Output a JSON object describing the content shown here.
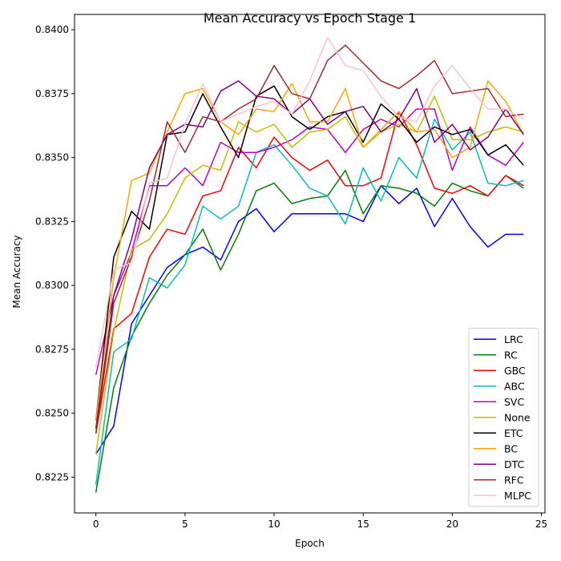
{
  "chart_data": {
    "type": "line",
    "title": "Mean Accuracy vs Epoch Stage 1",
    "xlabel": "Epoch",
    "ylabel": "Mean Accuracy",
    "xlim": [
      -1.2,
      25.2
    ],
    "ylim": [
      0.8211,
      0.8406
    ],
    "xticks": [
      0,
      5,
      10,
      15,
      20,
      25
    ],
    "yticks": [
      0.8225,
      0.825,
      0.8275,
      0.83,
      0.8325,
      0.835,
      0.8375,
      0.84
    ],
    "ytick_labels": [
      "0.8225",
      "0.8250",
      "0.8275",
      "0.8300",
      "0.8325",
      "0.8350",
      "0.8375",
      "0.8400"
    ],
    "grid": false,
    "legend_position": "lower-right",
    "x": [
      0,
      1,
      2,
      3,
      4,
      5,
      6,
      7,
      8,
      9,
      10,
      11,
      12,
      13,
      14,
      15,
      16,
      17,
      18,
      19,
      20,
      21,
      22,
      23,
      24
    ],
    "series": [
      {
        "name": "LRC",
        "color": "#0000ff",
        "values": [
          0.8234,
          0.8245,
          0.8285,
          0.8296,
          0.8307,
          0.8312,
          0.8315,
          0.831,
          0.8325,
          0.833,
          0.8321,
          0.8328,
          0.8328,
          0.8328,
          0.8328,
          0.8325,
          0.8339,
          0.8332,
          0.8338,
          0.8323,
          0.8334,
          0.8323,
          0.8315,
          0.832,
          0.832
        ]
      },
      {
        "name": "RC",
        "color": "#008000",
        "values": [
          0.8219,
          0.826,
          0.828,
          0.8293,
          0.8304,
          0.8312,
          0.8322,
          0.8306,
          0.832,
          0.8337,
          0.834,
          0.8332,
          0.8334,
          0.8335,
          0.8345,
          0.8328,
          0.8339,
          0.8338,
          0.8336,
          0.8331,
          0.834,
          0.8337,
          0.8335,
          0.8343,
          0.8338
        ]
      },
      {
        "name": "GBC",
        "color": "#ff0000",
        "values": [
          0.8242,
          0.8283,
          0.8289,
          0.8311,
          0.8322,
          0.832,
          0.8335,
          0.8337,
          0.8354,
          0.8346,
          0.8358,
          0.835,
          0.8345,
          0.8349,
          0.8339,
          0.8339,
          0.8342,
          0.8368,
          0.8355,
          0.8338,
          0.8336,
          0.8339,
          0.8335,
          0.8343,
          0.8339
        ]
      },
      {
        "name": "ABC",
        "color": "#00bfbf",
        "values": [
          0.8222,
          0.8274,
          0.8279,
          0.8303,
          0.8299,
          0.8308,
          0.8331,
          0.8326,
          0.8331,
          0.8352,
          0.8355,
          0.8347,
          0.8338,
          0.8335,
          0.8324,
          0.8346,
          0.8333,
          0.835,
          0.8342,
          0.8365,
          0.8353,
          0.836,
          0.834,
          0.8339,
          0.8341
        ]
      },
      {
        "name": "SVC",
        "color": "#bf00bf",
        "values": [
          0.8265,
          0.8296,
          0.8313,
          0.8339,
          0.8339,
          0.8346,
          0.8339,
          0.8356,
          0.8352,
          0.8352,
          0.8354,
          0.8357,
          0.8362,
          0.8361,
          0.8352,
          0.8361,
          0.8365,
          0.8362,
          0.8369,
          0.8369,
          0.8345,
          0.8362,
          0.8351,
          0.8347,
          0.8356
        ]
      },
      {
        "name": "None",
        "color": "#bfbf00",
        "values": [
          0.8234,
          0.8282,
          0.8314,
          0.8318,
          0.8328,
          0.8342,
          0.8347,
          0.8345,
          0.8364,
          0.836,
          0.8363,
          0.8354,
          0.836,
          0.8361,
          0.8366,
          0.8354,
          0.836,
          0.8363,
          0.836,
          0.8374,
          0.8357,
          0.8357,
          0.836,
          0.8362,
          0.836
        ]
      },
      {
        "name": "ETC",
        "color": "#000000",
        "values": [
          0.8247,
          0.8311,
          0.8329,
          0.8322,
          0.8359,
          0.836,
          0.8375,
          0.8362,
          0.835,
          0.8374,
          0.8378,
          0.8366,
          0.8361,
          0.8366,
          0.8368,
          0.8356,
          0.8371,
          0.8365,
          0.8356,
          0.8362,
          0.8359,
          0.8361,
          0.8351,
          0.8355,
          0.8347
        ]
      },
      {
        "name": "BC",
        "color": "#ffa500",
        "values": [
          0.8247,
          0.8303,
          0.8341,
          0.8344,
          0.836,
          0.8375,
          0.8377,
          0.8364,
          0.8359,
          0.8369,
          0.8368,
          0.8379,
          0.8364,
          0.8364,
          0.8377,
          0.8354,
          0.8361,
          0.8368,
          0.836,
          0.8361,
          0.835,
          0.8354,
          0.838,
          0.8372,
          0.8359
        ]
      },
      {
        "name": "DTC",
        "color": "#800080",
        "values": [
          0.8244,
          0.8296,
          0.8318,
          0.8346,
          0.8359,
          0.8363,
          0.8362,
          0.8376,
          0.838,
          0.8374,
          0.8373,
          0.8367,
          0.8373,
          0.8363,
          0.8368,
          0.837,
          0.836,
          0.8365,
          0.8377,
          0.8356,
          0.8363,
          0.8353,
          0.8358,
          0.8369,
          0.8359
        ]
      },
      {
        "name": "RFC",
        "color": "#a52a2a",
        "values": [
          0.8242,
          0.8293,
          0.8311,
          0.8333,
          0.8364,
          0.8352,
          0.8366,
          0.8364,
          0.8369,
          0.8373,
          0.8386,
          0.8375,
          0.8373,
          0.8388,
          0.8394,
          0.8387,
          0.838,
          0.8377,
          0.8382,
          0.8388,
          0.8375,
          0.8376,
          0.8377,
          0.8366,
          0.8367
        ]
      },
      {
        "name": "MLPC",
        "color": "#ffc0cb",
        "values": [
          0.8268,
          0.8306,
          0.8309,
          0.834,
          0.8342,
          0.8363,
          0.8379,
          0.8364,
          0.8367,
          0.837,
          0.8372,
          0.8367,
          0.838,
          0.8397,
          0.8386,
          0.8384,
          0.8374,
          0.8366,
          0.8364,
          0.8378,
          0.8386,
          0.8377,
          0.8369,
          0.8369,
          0.8365
        ]
      }
    ]
  }
}
